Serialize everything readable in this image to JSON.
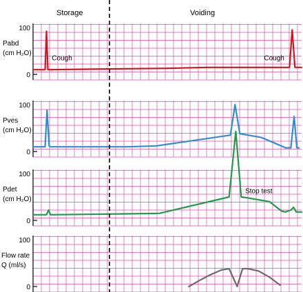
{
  "chart_data": {
    "type": "line",
    "phases": {
      "storage": "Storage",
      "voiding": "Voiding"
    },
    "colors": {
      "grid": "#e24aa8",
      "axis": "#000000",
      "divider": "#000000"
    },
    "x_range": [
      0,
      100
    ],
    "panels": [
      {
        "id": "pabd",
        "ylabel_lines": [
          "Pabd",
          "(cm H₂O)"
        ],
        "yticks": [
          "100",
          "0"
        ],
        "ylim": [
          0,
          100
        ],
        "color": "#d6121f",
        "annotations": [
          {
            "text": "Cough",
            "x": 7,
            "y": 30
          },
          {
            "text": "Cough",
            "x": 86,
            "y": 30
          }
        ],
        "series": [
          {
            "x": [
              0,
              4.5,
              5,
              5.5,
              6,
              20,
              35,
              50,
              65,
              73.5,
              75,
              76.5,
              80,
              90,
              95.5,
              96.5,
              97.5,
              99,
              100
            ],
            "y": [
              10,
              10,
              92,
              10,
              10,
              11,
              12,
              13,
              15,
              15,
              15,
              15,
              15,
              15,
              15,
              95,
              15,
              15,
              15
            ]
          }
        ]
      },
      {
        "id": "pves",
        "ylabel_lines": [
          "Pves",
          "(cm H₂O)"
        ],
        "yticks": [
          "100",
          "0"
        ],
        "ylim": [
          0,
          100
        ],
        "color": "#2b8fce",
        "annotations": [],
        "series": [
          {
            "x": [
              0,
              4.5,
              5.2,
              6,
              6.5,
              20,
              35,
              46,
              73.5,
              75.2,
              77,
              80,
              85,
              90,
              94,
              96,
              97.2,
              98.2,
              99
            ],
            "y": [
              10,
              10,
              88,
              12,
              10,
              10,
              10,
              12,
              35,
              100,
              38,
              35,
              30,
              18,
              8,
              8,
              75,
              8,
              8
            ]
          }
        ]
      },
      {
        "id": "pdet",
        "ylabel_lines": [
          "Pdet",
          "(cm H₂O)"
        ],
        "yticks": [
          "100",
          "0"
        ],
        "ylim": [
          0,
          100
        ],
        "color": "#1f9a48",
        "annotations": [
          {
            "text": "Stop test",
            "x": 79,
            "y": 58
          }
        ],
        "series": [
          {
            "x": [
              0,
              5,
              5.8,
              6.5,
              7,
              20,
              35,
              47,
              73,
              75.5,
              77.5,
              80,
              88,
              92.5,
              94,
              96,
              97,
              98,
              100
            ],
            "y": [
              12,
              12,
              22,
              12,
              12,
              13,
              14,
              15,
              50,
              190,
              50,
              48,
              40,
              20,
              18,
              22,
              28,
              18,
              18
            ]
          }
        ]
      },
      {
        "id": "flow",
        "ylabel_lines": [
          "Flow rate",
          "Q (ml/s)"
        ],
        "yticks": [
          "100",
          "0"
        ],
        "ylim": [
          0,
          100
        ],
        "color": "#6a6a6a",
        "annotations": [],
        "series": [
          {
            "x": [
              58,
              62,
              66,
              70,
              73,
              76,
              78,
              80,
              84,
              88,
              92
            ],
            "y": [
              0,
              13,
              25,
              35,
              38,
              0,
              38,
              38,
              33,
              20,
              3
            ]
          }
        ]
      }
    ]
  }
}
